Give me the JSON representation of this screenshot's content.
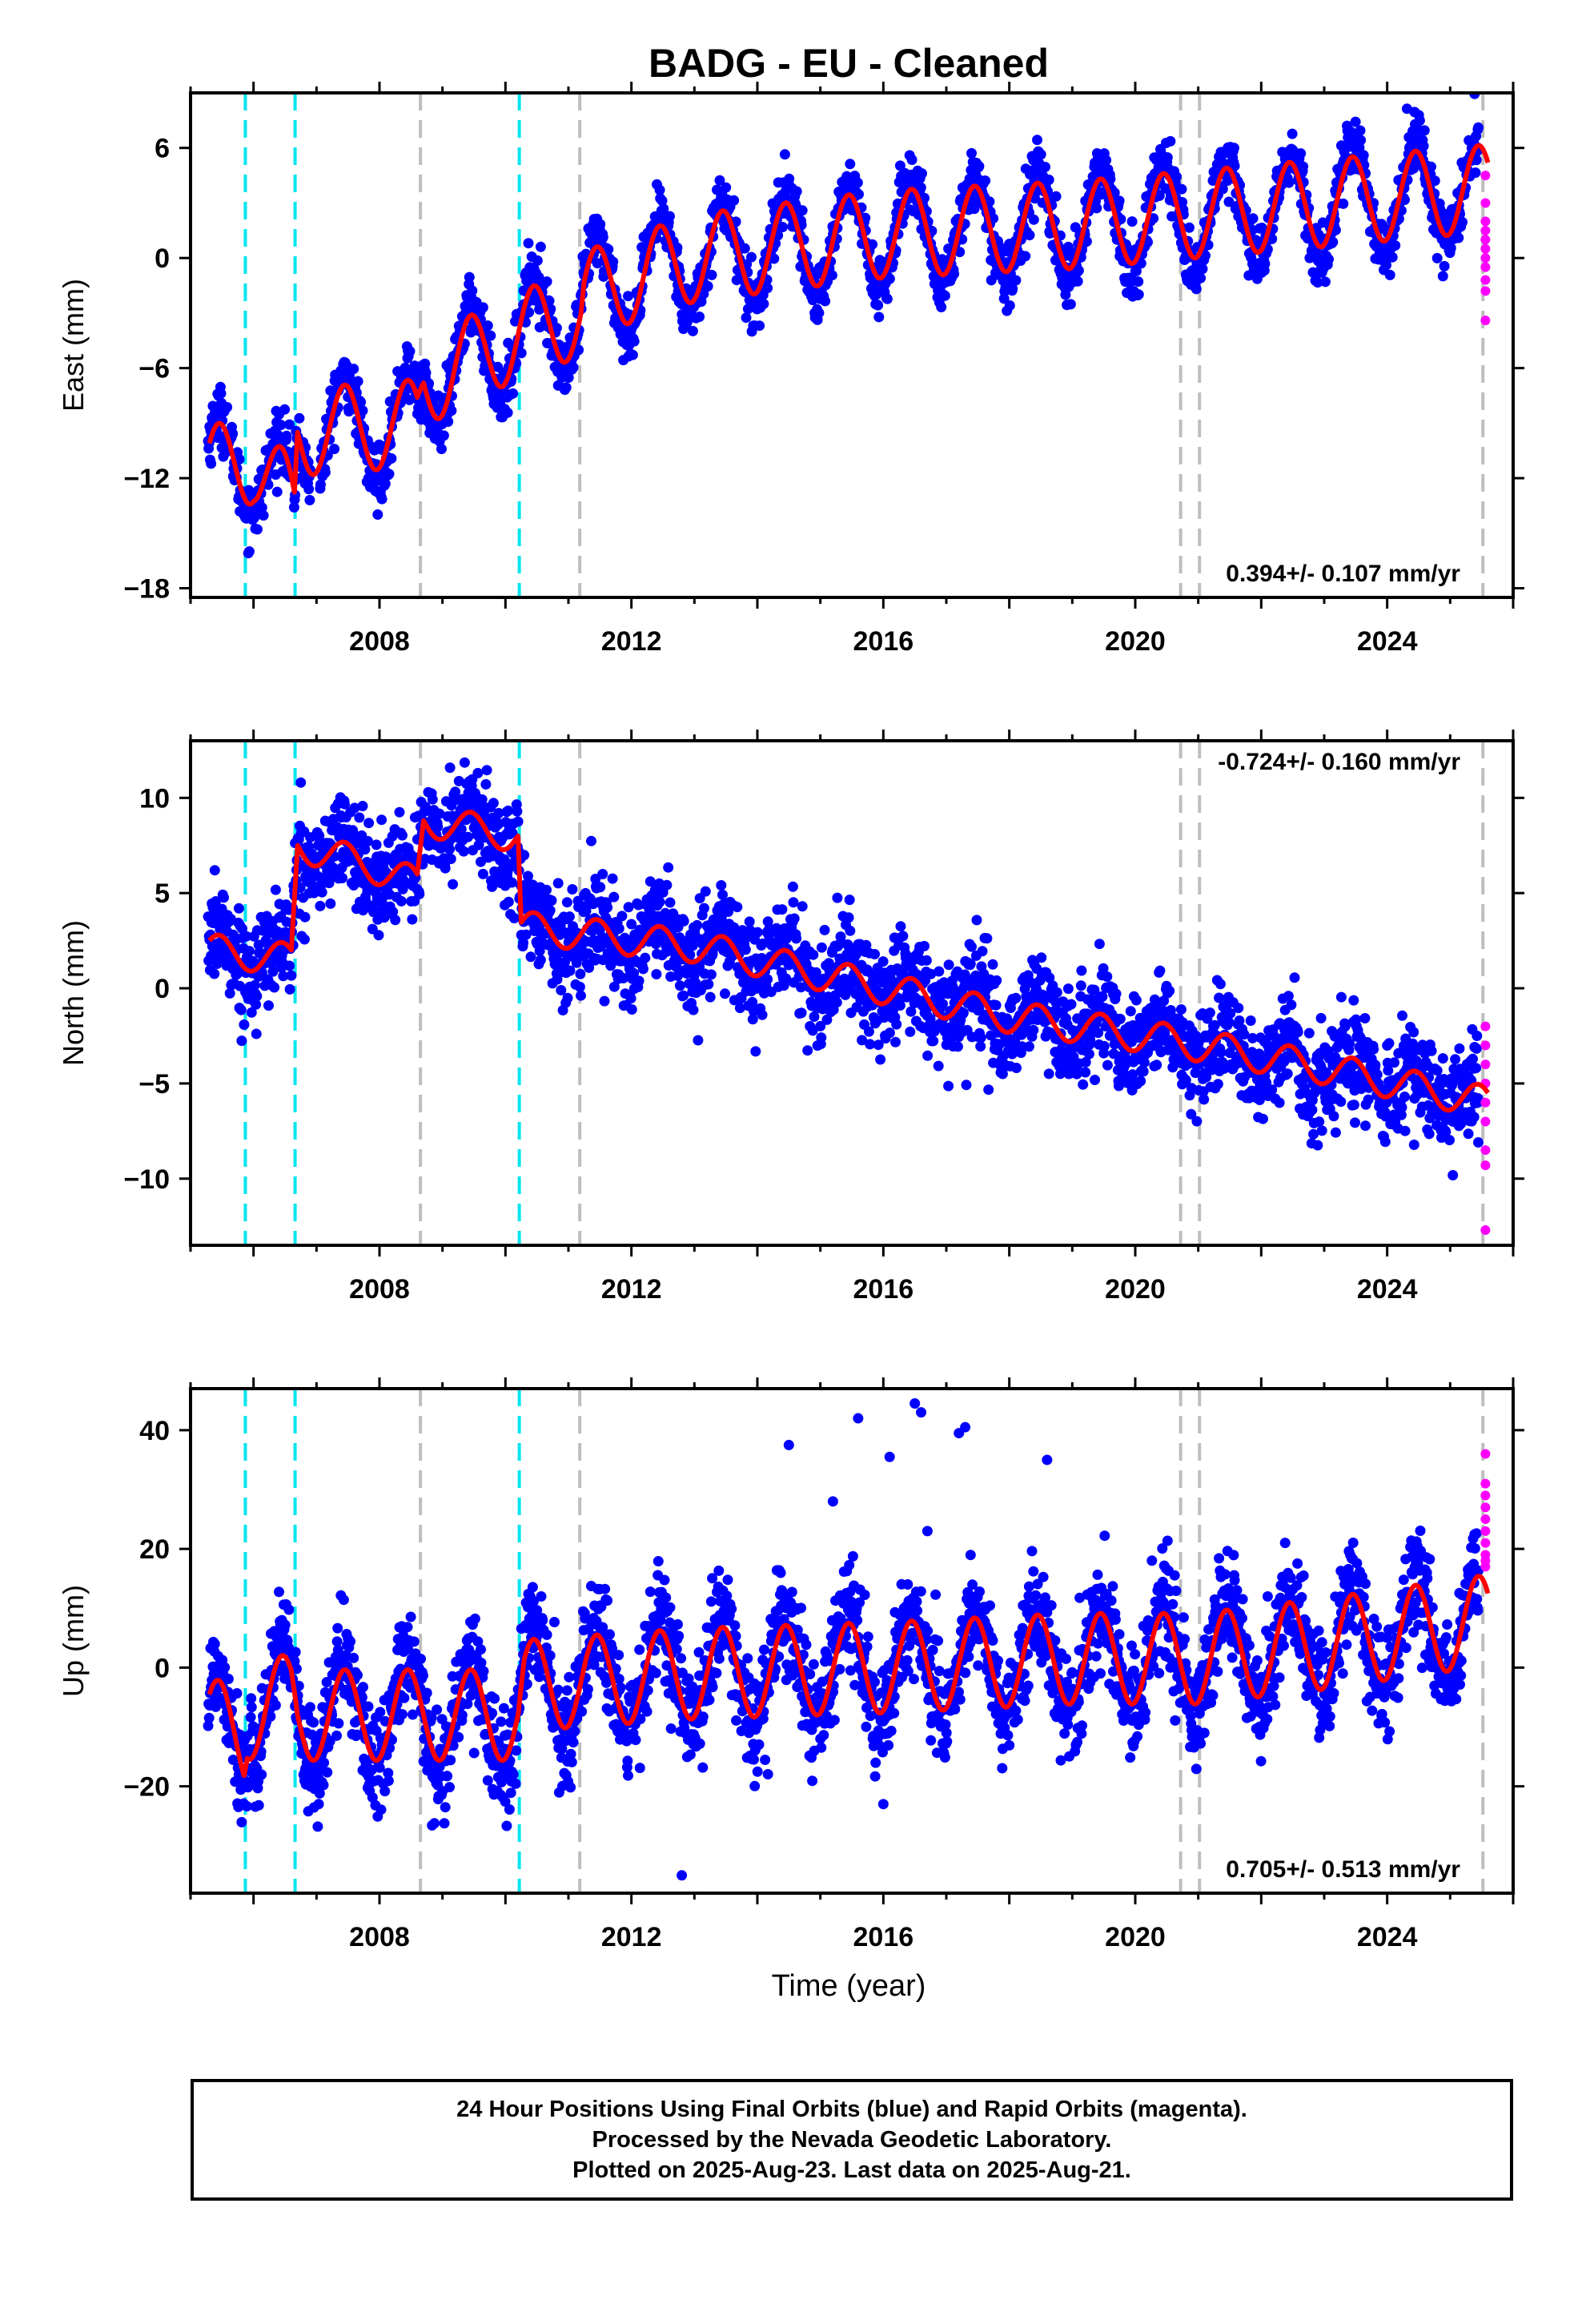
{
  "title": "BADG  - EU - Cleaned",
  "x_label": "Time (year)",
  "colors": {
    "final_orbits": "#0000ff",
    "rapid_orbits": "#ff00ff",
    "model": "#ff0000",
    "equipment_change": "#00e5ee",
    "earthquake": "#bebebe"
  },
  "footer": {
    "line1": "24 Hour Positions Using Final Orbits (blue) and Rapid Orbits (magenta).",
    "line2": "Processed by the Nevada Geodetic Laboratory.",
    "line3": "Plotted on 2025-Aug-23. Last data on 2025-Aug-21."
  },
  "chart_data": [
    {
      "type": "scatter",
      "panel": "east",
      "ylabel": "East (mm)",
      "rate_text": "0.394+/- 0.107 mm/yr",
      "rate_position": "bottom-right",
      "xlim": [
        2005.0,
        2026.0
      ],
      "ylim": [
        -18.5,
        9.0
      ],
      "xticks": [
        2008,
        2012,
        2016,
        2020,
        2024
      ],
      "yticks": [
        -18,
        -12,
        -6,
        0,
        6
      ],
      "cyan_lines": [
        2005.87,
        2006.66,
        2010.22
      ],
      "gray_lines": [
        2008.65,
        2011.18,
        2020.72,
        2021.02,
        2025.52
      ],
      "model_trend": [
        [
          2005.3,
          -11.5
        ],
        [
          2006.0,
          -11.0
        ],
        [
          2006.65,
          -13.5
        ],
        [
          2006.7,
          -9.5
        ],
        [
          2008.6,
          -9.0
        ],
        [
          2008.7,
          -6.8
        ],
        [
          2010.2,
          -4.2
        ],
        [
          2011.2,
          -3.0
        ],
        [
          2011.25,
          -2.0
        ],
        [
          2013,
          0.0
        ],
        [
          2016,
          1.3
        ],
        [
          2019,
          1.8
        ],
        [
          2020.7,
          2.3
        ],
        [
          2023,
          3.0
        ],
        [
          2025.6,
          3.8
        ]
      ],
      "seasonal_amplitude": 2.8,
      "noise": 0.8,
      "rapid_points": [
        4.5,
        3.0,
        2.0,
        1.5,
        1.0,
        0.5,
        0.0,
        -0.5,
        -1.2,
        -3.4,
        -1.8
      ]
    },
    {
      "type": "scatter",
      "panel": "north",
      "ylabel": "North (mm)",
      "rate_text": "-0.724+/- 0.160 mm/yr",
      "rate_position": "top-right",
      "xlim": [
        2005.0,
        2026.0
      ],
      "ylim": [
        -13.5,
        13.0
      ],
      "xticks": [
        2008,
        2012,
        2016,
        2020,
        2024
      ],
      "yticks": [
        -10,
        -5,
        0,
        5,
        10
      ],
      "cyan_lines": [
        2005.87,
        2006.66,
        2010.22
      ],
      "gray_lines": [
        2008.65,
        2011.18,
        2020.72,
        2021.02,
        2025.52
      ],
      "model_trend": [
        [
          2005.3,
          2.0
        ],
        [
          2006.6,
          1.5
        ],
        [
          2006.7,
          7.5
        ],
        [
          2007.8,
          6.5
        ],
        [
          2008.6,
          5.5
        ],
        [
          2008.7,
          8.8
        ],
        [
          2010.2,
          8.0
        ],
        [
          2010.25,
          3.2
        ],
        [
          2013,
          2.2
        ],
        [
          2016,
          0.0
        ],
        [
          2018,
          -1.5
        ],
        [
          2020.7,
          -2.8
        ],
        [
          2021,
          -3.0
        ],
        [
          2023,
          -4.2
        ],
        [
          2025.6,
          -6.0
        ]
      ],
      "seasonal_amplitude": 1.0,
      "noise": 1.3,
      "rapid_points": [
        -2.0,
        -3.0,
        -4.0,
        -5.0,
        -6.0,
        -7.0,
        -8.5,
        -9.3,
        -12.7
      ]
    },
    {
      "type": "scatter",
      "panel": "up",
      "ylabel": "Up (mm)",
      "rate_text": "0.705+/- 0.513 mm/yr",
      "rate_position": "bottom-right",
      "xlim": [
        2005.0,
        2026.0
      ],
      "ylim": [
        -38.0,
        47.0
      ],
      "xticks": [
        2008,
        2012,
        2016,
        2020,
        2024
      ],
      "yticks": [
        -20,
        0,
        20,
        40
      ],
      "cyan_lines": [
        2005.87,
        2006.66,
        2010.22
      ],
      "gray_lines": [
        2008.65,
        2011.18,
        2020.72,
        2021.02,
        2025.52
      ],
      "model_trend": [
        [
          2005.3,
          -9.0
        ],
        [
          2005.85,
          -12.0
        ],
        [
          2005.9,
          -8.0
        ],
        [
          2006.6,
          -5.0
        ],
        [
          2006.7,
          -8.0
        ],
        [
          2010.2,
          -8.0
        ],
        [
          2010.3,
          -3.0
        ],
        [
          2013,
          -1.0
        ],
        [
          2016,
          0.0
        ],
        [
          2019,
          1.5
        ],
        [
          2021,
          1.5
        ],
        [
          2023,
          4.0
        ],
        [
          2025.6,
          8.0
        ]
      ],
      "seasonal_amplitude": 9.0,
      "noise": 4.5,
      "outliers": [
        [
          2014.5,
          37.5
        ],
        [
          2015.6,
          42.0
        ],
        [
          2016.5,
          44.5
        ],
        [
          2016.6,
          43.0
        ],
        [
          2017.2,
          39.5
        ],
        [
          2017.3,
          40.5
        ],
        [
          2018.6,
          35.0
        ],
        [
          2016.1,
          35.5
        ],
        [
          2015.2,
          28.0
        ],
        [
          2016.7,
          23.0
        ],
        [
          2012.8,
          -35.0
        ],
        [
          2016.0,
          -23.0
        ]
      ],
      "rapid_points": [
        36.0,
        31.0,
        29.0,
        27.0,
        25.0,
        23.0,
        21.0,
        19.0,
        18.0,
        17.0
      ]
    }
  ]
}
